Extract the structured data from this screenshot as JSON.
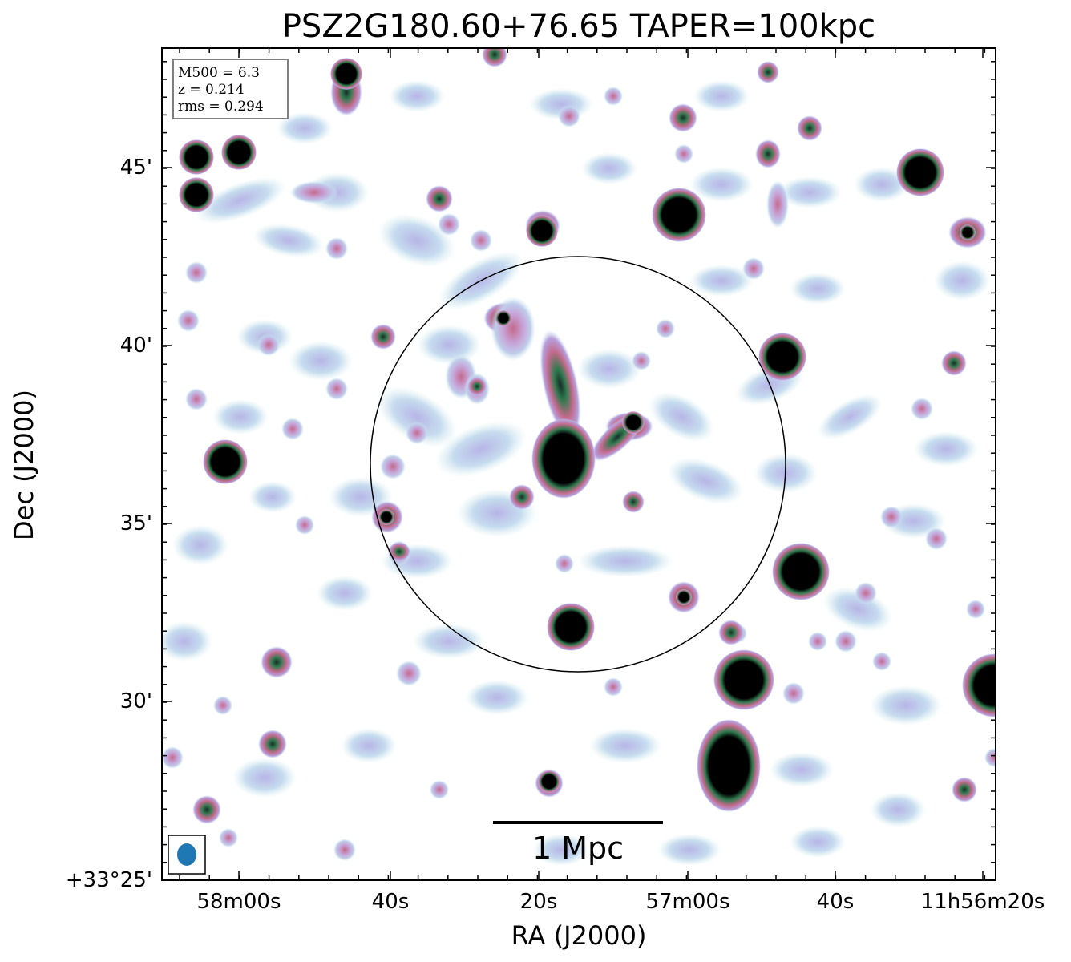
{
  "title": "PSZ2G180.60+76.65 TAPER=100kpc",
  "xlabel": "RA (J2000)",
  "ylabel": "Dec (J2000)",
  "x_ticks": [
    "58m00s",
    "40s",
    "20s",
    "57m00s",
    "40s",
    "11h56m20s"
  ],
  "y_ticks": [
    "+33°25'",
    "30'",
    "35'",
    "40'",
    "45'"
  ],
  "info": {
    "m500": "M500 = 6.3",
    "z": "z = 0.214",
    "rms": "rms = 0.294"
  },
  "scale_bar_label": "1 Mpc",
  "colors": {
    "frame": "#000000",
    "beam": "#1f77b4",
    "compact_source": "#000000",
    "halo_teal": "#2e7a4e",
    "halo_pink": "#c26a8a",
    "halo_lilac": "#b7a0de",
    "halo_pale": "#c8e6ee"
  },
  "icons": {
    "beam": "filled-ellipse",
    "aperture": "circle-outline"
  }
}
